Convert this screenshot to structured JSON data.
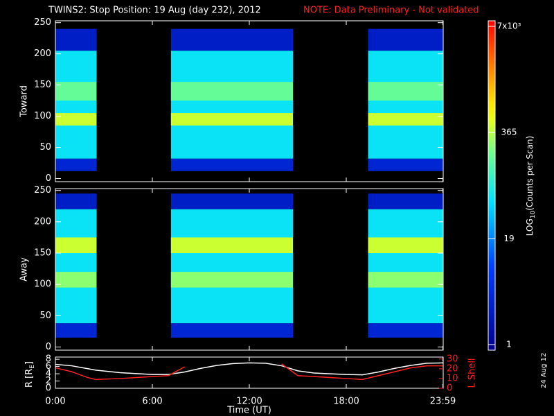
{
  "chart_data": {
    "type": "spectrogram",
    "title": "TWINS2: Stop Position: 19 Aug (day 232), 2012",
    "note": "NOTE: Data Preliminary - Not validated",
    "xlim": [
      0,
      24
    ],
    "xticks": [
      {
        "value": 0,
        "label": "0:00"
      },
      {
        "value": 6,
        "label": "6:00"
      },
      {
        "value": 12,
        "label": "12:00"
      },
      {
        "value": 18,
        "label": "18:00"
      },
      {
        "value": 23.98,
        "label": "23:59"
      }
    ],
    "xlabel": "Time (UT)",
    "date": "24 Aug 12",
    "segments": [
      [
        0,
        2.55
      ],
      [
        7.15,
        14.7
      ],
      [
        19.35,
        24
      ]
    ],
    "colorbar": {
      "label": [
        "LOG",
        "10",
        "(Counts per Scan)"
      ],
      "clim": [
        1,
        7000
      ],
      "log": true,
      "ticks": [
        1,
        19,
        365,
        {
          "value": 7000,
          "label": "7x10³"
        }
      ]
    },
    "panels": [
      {
        "ylabel": "Toward",
        "ylim": [
          -5,
          253
        ],
        "yticks": [
          0,
          50,
          100,
          150,
          200,
          250
        ],
        "bands": [
          {
            "lo": 205,
            "hi": 240,
            "counts": 3
          },
          {
            "lo": 12,
            "hi": 32,
            "counts": 4
          },
          {
            "lo": 32,
            "hi": 205,
            "counts": 60
          },
          {
            "lo": 125,
            "hi": 155,
            "counts": 180
          },
          {
            "lo": 85,
            "hi": 105,
            "counts": 400
          }
        ]
      },
      {
        "ylabel": "Away",
        "ylim": [
          -5,
          253
        ],
        "yticks": [
          0,
          50,
          100,
          150,
          200,
          250
        ],
        "bands": [
          {
            "lo": 220,
            "hi": 245,
            "counts": 3
          },
          {
            "lo": 15,
            "hi": 38,
            "counts": 4
          },
          {
            "lo": 38,
            "hi": 220,
            "counts": 60
          },
          {
            "lo": 95,
            "hi": 120,
            "counts": 250
          },
          {
            "lo": 150,
            "hi": 175,
            "counts": 400
          }
        ]
      }
    ],
    "orbit": {
      "ylabel": [
        "R [R",
        "E",
        "]"
      ],
      "ylim": [
        0,
        8.6
      ],
      "yticks": [
        0,
        2,
        4,
        6,
        8
      ],
      "y2label": "L Shell",
      "y2lim": [
        0,
        32
      ],
      "y2ticks": [
        0,
        10,
        20,
        30
      ],
      "x": [
        0,
        1,
        2,
        2.5,
        4,
        6,
        7,
        8,
        9,
        10,
        11,
        12,
        13,
        14,
        15,
        16,
        17,
        18,
        19,
        20,
        21,
        22,
        23,
        23.98
      ],
      "series": [
        {
          "name": "R",
          "color": "#ffffff",
          "values": [
            6.6,
            6.2,
            5.4,
            5.0,
            4.3,
            3.8,
            3.8,
            4.5,
            5.5,
            6.3,
            6.8,
            7.0,
            6.9,
            6.2,
            4.8,
            4.2,
            4.0,
            3.8,
            3.7,
            4.5,
            5.5,
            6.3,
            6.9,
            7.0
          ]
        },
        {
          "name": "L Shell",
          "color": "#ff2020",
          "axis": "y2",
          "values": [
            21,
            17,
            11,
            9,
            10,
            12,
            13,
            22,
            null,
            null,
            null,
            null,
            null,
            25,
            13,
            12,
            11,
            10,
            9,
            13,
            17,
            21,
            23,
            23
          ]
        }
      ]
    }
  }
}
